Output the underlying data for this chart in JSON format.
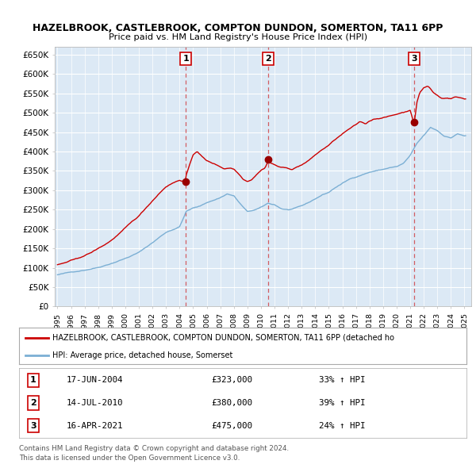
{
  "title": "HAZELBROOK, CASTLEBROOK, COMPTON DUNDON, SOMERTON, TA11 6PP",
  "subtitle": "Price paid vs. HM Land Registry's House Price Index (HPI)",
  "ylim": [
    0,
    670000
  ],
  "yticks": [
    0,
    50000,
    100000,
    150000,
    200000,
    250000,
    300000,
    350000,
    400000,
    450000,
    500000,
    550000,
    600000,
    650000
  ],
  "xlim_start": 1994.8,
  "xlim_end": 2025.5,
  "background_color": "#ffffff",
  "plot_bg_color": "#dce9f5",
  "grid_color": "#ffffff",
  "red_color": "#cc0000",
  "blue_color": "#7bafd4",
  "sale_points": [
    {
      "num": 1,
      "year": 2004.46,
      "price": 323000,
      "date": "17-JUN-2004",
      "pct": "33%",
      "dir": "↑"
    },
    {
      "num": 2,
      "year": 2010.54,
      "price": 380000,
      "date": "14-JUL-2010",
      "pct": "39%",
      "dir": "↑"
    },
    {
      "num": 3,
      "year": 2021.29,
      "price": 475000,
      "date": "16-APR-2021",
      "pct": "24%",
      "dir": "↑"
    }
  ],
  "legend_red": "HAZELBROOK, CASTLEBROOK, COMPTON DUNDON, SOMERTON, TA11 6PP (detached ho",
  "legend_blue": "HPI: Average price, detached house, Somerset",
  "footnote1": "Contains HM Land Registry data © Crown copyright and database right 2024.",
  "footnote2": "This data is licensed under the Open Government Licence v3.0."
}
